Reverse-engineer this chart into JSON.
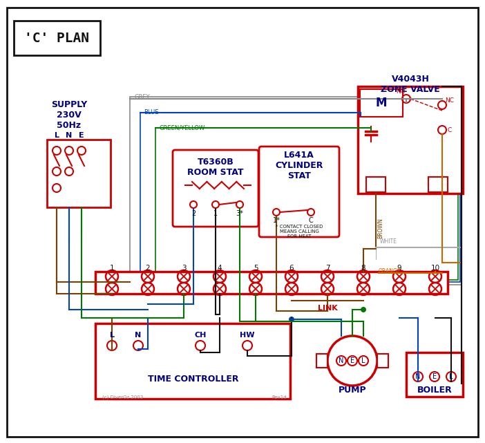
{
  "red": "#cc0000",
  "blue": "#0044bb",
  "green": "#007700",
  "brown": "#7B3F00",
  "grey": "#888888",
  "orange": "#CC6600",
  "black": "#111111",
  "navy": "#000080",
  "title": "'C' PLAN",
  "zone_valve_title": "V4043H\nZONE VALVE",
  "supply_text": "SUPPLY\n230V\n50Hz",
  "room_stat_title": "T6360B\nROOM STAT",
  "cyl_stat_title": "L641A\nCYLINDER\nSTAT",
  "time_controller_label": "TIME CONTROLLER",
  "pump_label": "PUMP",
  "boiler_label": "BOILER",
  "link_label": "LINK",
  "copyright": "(c) DiverOz 2003",
  "rev": "Rev1d"
}
